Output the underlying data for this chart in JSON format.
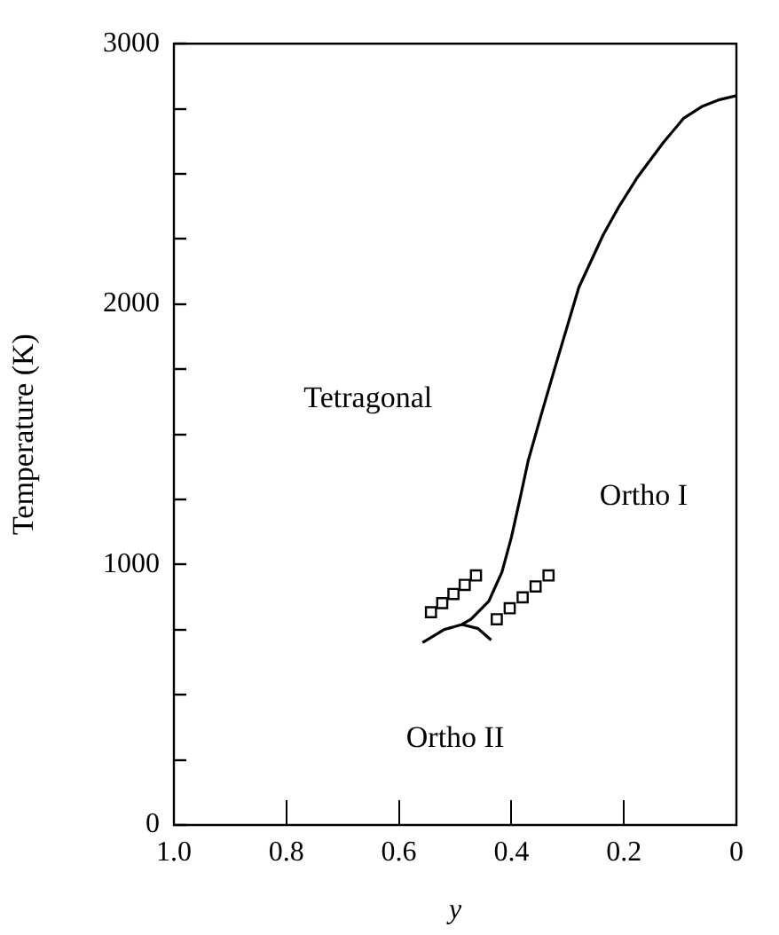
{
  "chart_data": {
    "type": "line",
    "xlabel": "y",
    "ylabel": "Temperature (K)",
    "xlim": [
      1.0,
      0
    ],
    "xticks": [
      {
        "value": 1.0,
        "label": "1.0"
      },
      {
        "value": 0.8,
        "label": "0.8"
      },
      {
        "value": 0.6,
        "label": "0.6"
      },
      {
        "value": 0.4,
        "label": "0.4"
      },
      {
        "value": 0.2,
        "label": "0.2"
      },
      0
    ],
    "ylim": [
      0,
      3000
    ],
    "yticks": [
      0,
      {
        "value": 250,
        "label": null
      },
      {
        "value": 500,
        "label": null
      },
      {
        "value": 750,
        "label": null
      },
      1000,
      {
        "value": 1250,
        "label": null
      },
      {
        "value": 1500,
        "label": null
      },
      {
        "value": 1750,
        "label": null
      },
      2000,
      {
        "value": 2250,
        "label": null
      },
      {
        "value": 2500,
        "label": null
      },
      {
        "value": 2750,
        "label": null
      },
      3000
    ],
    "grid": false,
    "legend": false,
    "line_style": "solid",
    "series": [
      {
        "type": "line",
        "color": "#000000",
        "marker": "none",
        "x": [
          0,
          0.03,
          0.06,
          0.094,
          0.13,
          0.175,
          0.21,
          0.237,
          0.28,
          0.32,
          0.345,
          0.37,
          0.385,
          0.4,
          0.417,
          0.44,
          0.472,
          0.488
        ],
        "values": [
          2800,
          2785,
          2760,
          2713,
          2620,
          2490,
          2370,
          2265,
          2065,
          1775,
          1590,
          1400,
          1250,
          1105,
          970,
          860,
          790,
          770
        ]
      },
      {
        "type": "line",
        "color": "#000000",
        "marker": "none",
        "x": [
          0.558,
          0.52,
          0.488,
          0.46,
          0.436
        ],
        "values": [
          700,
          750,
          770,
          755,
          710
        ]
      },
      {
        "type": "scatter",
        "color": "#000000",
        "marker": "square",
        "x": [
          0.543,
          0.523,
          0.503,
          0.483,
          0.463
        ],
        "values": [
          817,
          852,
          887,
          922,
          958
        ]
      },
      {
        "type": "scatter",
        "color": "#000000",
        "marker": "square",
        "x": [
          0.426,
          0.403,
          0.38,
          0.357,
          0.334
        ],
        "values": [
          790,
          832,
          874,
          916,
          958
        ]
      }
    ],
    "annotations": [
      "Tetragonal",
      "Ortho I",
      "Ortho II"
    ]
  }
}
